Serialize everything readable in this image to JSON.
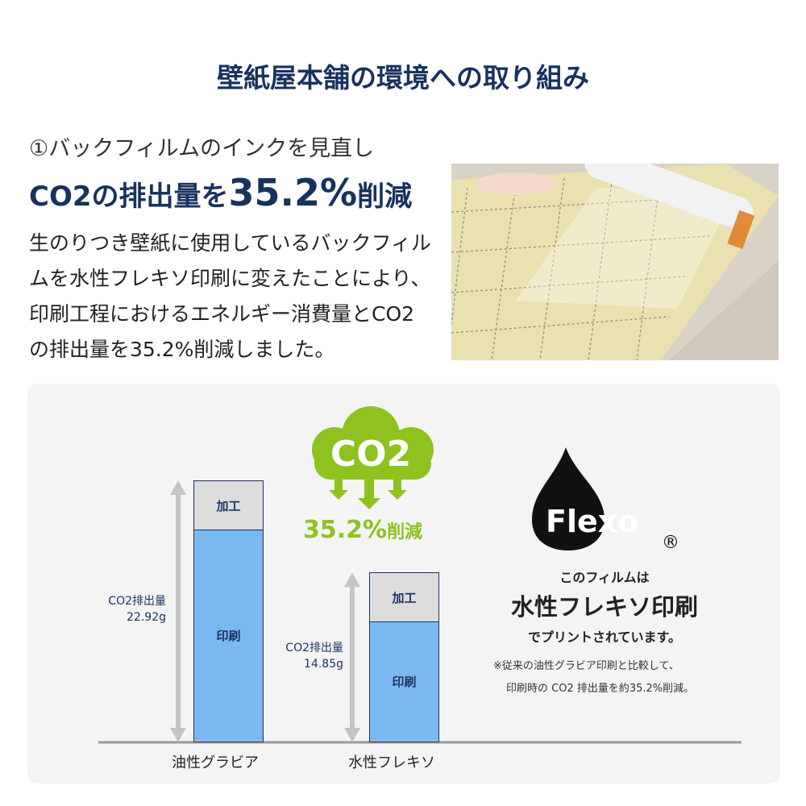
{
  "title": "壁紙屋本舗の環境への取り組み",
  "section": {
    "subtitle": "①バックフィルムのインクを見直し",
    "headline_prefix": "CO2の排出量を",
    "headline_pct": "35.2%",
    "headline_suffix": "削減",
    "body": "生のりつき壁紙に使用しているバックフィルムを水性フレキソ印刷に変えたことにより、印刷工程におけるエネルギー消費量とCO2の排出量を35.2%削減しました。"
  },
  "colors": {
    "navy": "#17325e",
    "green": "#8dc21f",
    "bar_print": "#7ab8f0",
    "bar_process": "#dcdcdc"
  },
  "cloud": {
    "label": "CO2",
    "reduction": "35.2%",
    "reduction_suffix": "削減"
  },
  "chart_data": {
    "type": "bar",
    "stacked": true,
    "categories": [
      "油性グラビア",
      "水性フレキソ"
    ],
    "series": [
      {
        "name": "印刷"
      },
      {
        "name": "加工"
      }
    ],
    "totals": [
      22.92,
      14.85
    ],
    "total_labels": [
      {
        "label": "CO2排出量",
        "value": "22.92g"
      },
      {
        "label": "CO2排出量",
        "value": "14.85g"
      }
    ],
    "unit": "g",
    "grid": false
  },
  "flexo": {
    "logo_text": "Flexo",
    "registered": "®",
    "line1": "このフィルムは",
    "line2": "水性フレキソ印刷",
    "line3": "でプリントされています。",
    "note1": "※従来の油性グラビア印刷と比較して、",
    "note2": "印刷時の CO2 排出量を約35.2%削減。"
  }
}
